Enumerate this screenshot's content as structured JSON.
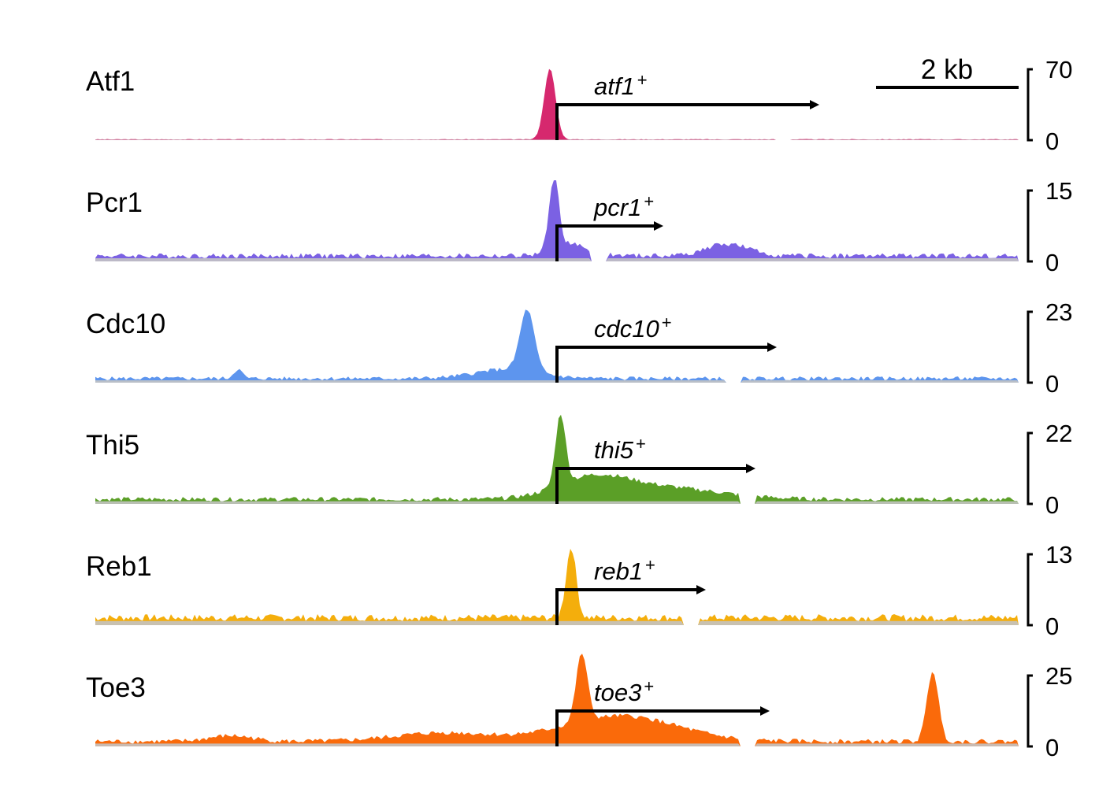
{
  "colors": {
    "background": "#c3c3c3",
    "axis": "#000000"
  },
  "scale_bar": {
    "label": "2 kb",
    "length_kb": 2
  },
  "chart_data": {
    "type": "area",
    "description_units": {
      "x": "kb relative to transcription start site"
    },
    "x_range_kb": [
      -6.5,
      6.5
    ],
    "tracks": [
      {
        "name": "Atf1",
        "gene": "atf1",
        "gene_sup": "+",
        "color": "#d6286e",
        "ymax": 70,
        "ymin": 0,
        "gene_arrow_end_kb": 3.7,
        "baseline_level": 0.8,
        "peaks": [
          {
            "x_kb": -0.1,
            "height": 70,
            "width_kb": 0.08
          }
        ],
        "dips_kb": [
          3.2
        ]
      },
      {
        "name": "Pcr1",
        "gene": "pcr1",
        "gene_sup": "+",
        "color": "#7b61e3",
        "ymax": 15,
        "ymin": 0,
        "gene_arrow_end_kb": 1.5,
        "baseline_level": 1.2,
        "peaks": [
          {
            "x_kb": -0.04,
            "height": 15,
            "width_kb": 0.07
          },
          {
            "x_kb": 0.2,
            "height": 2.4,
            "width_kb": 0.25
          },
          {
            "x_kb": 2.4,
            "height": 2.5,
            "width_kb": 0.3
          }
        ],
        "dips_kb": [
          0.6
        ]
      },
      {
        "name": "Cdc10",
        "gene": "cdc10",
        "gene_sup": "+",
        "color": "#5d95ee",
        "ymax": 23,
        "ymin": 0,
        "gene_arrow_end_kb": 3.1,
        "baseline_level": 1.4,
        "peaks": [
          {
            "x_kb": -0.42,
            "height": 20,
            "width_kb": 0.1
          },
          {
            "x_kb": -0.7,
            "height": 3,
            "width_kb": 0.45
          },
          {
            "x_kb": -4.5,
            "height": 3,
            "width_kb": 0.06
          }
        ],
        "dips_kb": [
          2.5
        ]
      },
      {
        "name": "Thi5",
        "gene": "thi5",
        "gene_sup": "+",
        "color": "#5b9f27",
        "ymax": 22,
        "ymin": 0,
        "gene_arrow_end_kb": 2.8,
        "baseline_level": 1.5,
        "peaks": [
          {
            "x_kb": 0.05,
            "height": 22,
            "width_kb": 0.07
          },
          {
            "x_kb": 0.5,
            "height": 6,
            "width_kb": 0.5
          },
          {
            "x_kb": 1.5,
            "height": 3.5,
            "width_kb": 0.8
          }
        ],
        "dips_kb": [
          2.7
        ]
      },
      {
        "name": "Reb1",
        "gene": "reb1",
        "gene_sup": "+",
        "color": "#f4ae0c",
        "ymax": 13,
        "ymin": 0,
        "gene_arrow_end_kb": 2.1,
        "baseline_level": 1.4,
        "peaks": [
          {
            "x_kb": 0.2,
            "height": 13,
            "width_kb": 0.07
          }
        ],
        "dips_kb": [
          1.9
        ]
      },
      {
        "name": "Toe3",
        "gene": "toe3",
        "gene_sup": "+",
        "color": "#fa6a0a",
        "ymax": 25,
        "ymin": 0,
        "gene_arrow_end_kb": 3.0,
        "baseline_level": 1.8,
        "peaks": [
          {
            "x_kb": 0.35,
            "height": 24,
            "width_kb": 0.08
          },
          {
            "x_kb": 0.9,
            "height": 9,
            "width_kb": 0.8
          },
          {
            "x_kb": 5.3,
            "height": 25,
            "width_kb": 0.08
          },
          {
            "x_kb": -4.6,
            "height": 2,
            "width_kb": 0.3
          },
          {
            "x_kb": -1.6,
            "height": 3,
            "width_kb": 0.7
          }
        ],
        "dips_kb": [
          2.7
        ]
      }
    ]
  }
}
